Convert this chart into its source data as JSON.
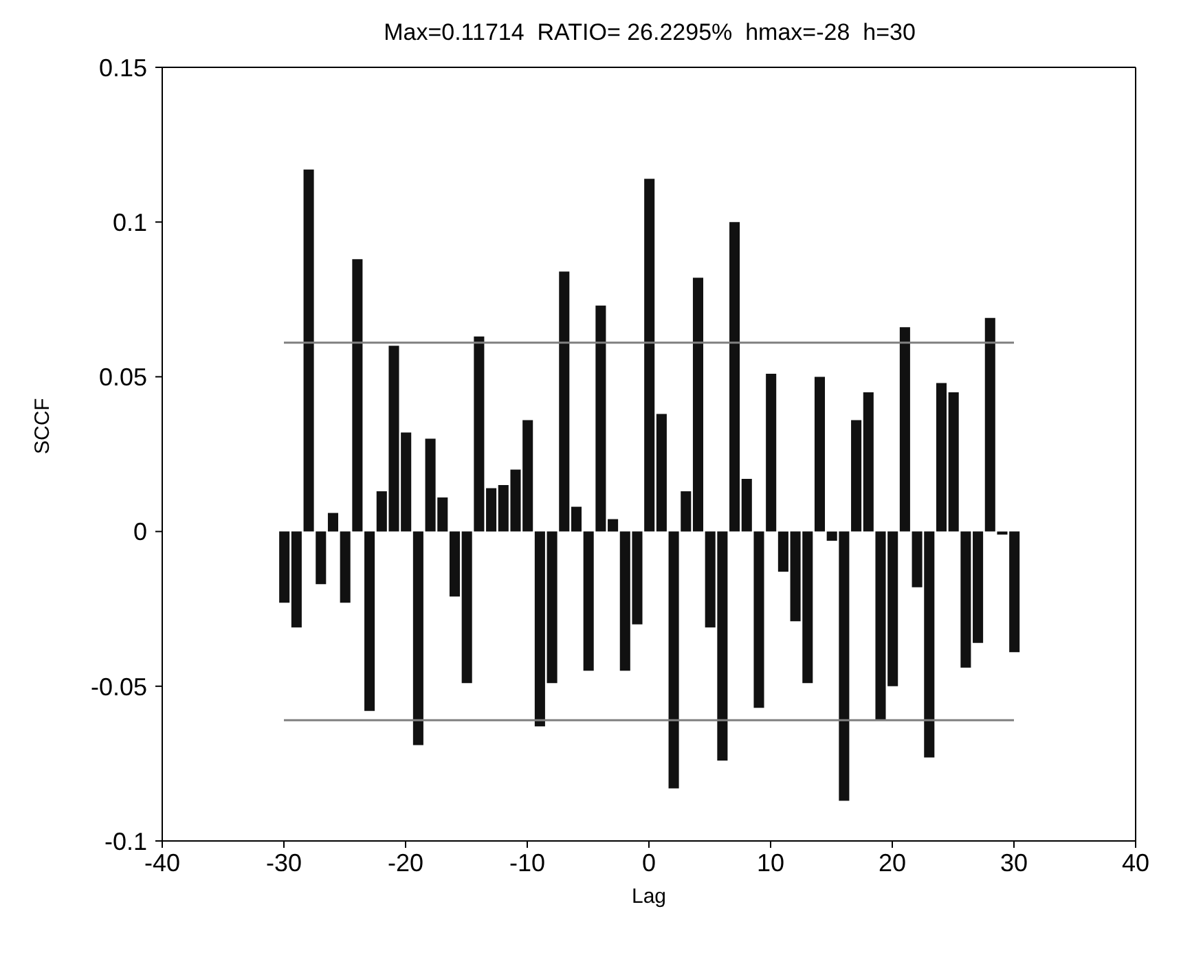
{
  "chart_data": {
    "type": "bar",
    "title": "Max=0.11714  RATIO= 26.2295%  hmax=-28  h=30",
    "xlabel": "Lag",
    "ylabel": "SCCF",
    "x": [
      -30,
      -29,
      -28,
      -27,
      -26,
      -25,
      -24,
      -23,
      -22,
      -21,
      -20,
      -19,
      -18,
      -17,
      -16,
      -15,
      -14,
      -13,
      -12,
      -11,
      -10,
      -9,
      -8,
      -7,
      -6,
      -5,
      -4,
      -3,
      -2,
      -1,
      0,
      1,
      2,
      3,
      4,
      5,
      6,
      7,
      8,
      9,
      10,
      11,
      12,
      13,
      14,
      15,
      16,
      17,
      18,
      19,
      20,
      21,
      22,
      23,
      24,
      25,
      26,
      27,
      28,
      29,
      30
    ],
    "series": [
      {
        "color": "#111111",
        "values": [
          -0.023,
          -0.031,
          0.117,
          -0.017,
          0.006,
          -0.023,
          0.088,
          -0.058,
          0.013,
          0.06,
          0.032,
          -0.069,
          0.03,
          0.011,
          -0.021,
          -0.049,
          0.063,
          0.014,
          0.015,
          0.02,
          0.036,
          -0.063,
          -0.049,
          0.084,
          0.008,
          -0.045,
          0.073,
          0.004,
          -0.045,
          -0.03,
          0.114,
          0.038,
          -0.083,
          0.013,
          0.082,
          -0.031,
          -0.074,
          0.1,
          0.017,
          -0.057,
          0.051,
          -0.013,
          -0.029,
          -0.049,
          0.05,
          -0.003,
          -0.087,
          0.036,
          0.045,
          -0.061,
          -0.05,
          0.066,
          -0.018,
          -0.073,
          0.048,
          0.045,
          -0.044,
          -0.036,
          0.069,
          -0.001,
          -0.039
        ]
      }
    ],
    "xlim": [
      -40,
      40
    ],
    "xticks": [
      -40,
      -30,
      -20,
      -10,
      0,
      10,
      20,
      30,
      40
    ],
    "ylim": [
      -0.1,
      0.15
    ],
    "yticks": [
      -0.1,
      -0.05,
      0,
      0.05,
      0.1,
      0.15
    ],
    "ref_lines": [
      {
        "axis": "y",
        "value": 0.061,
        "color": "#808080"
      },
      {
        "axis": "y",
        "value": -0.061,
        "color": "#808080"
      }
    ],
    "grid": false,
    "legend": false
  }
}
